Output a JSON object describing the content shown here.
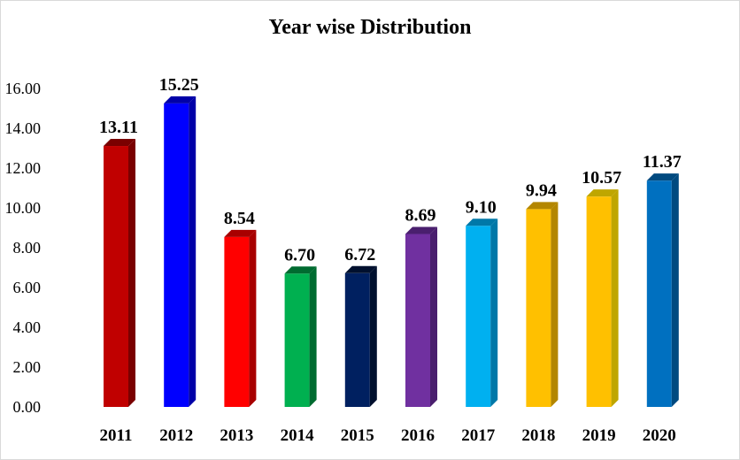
{
  "chart_data": {
    "type": "bar",
    "title": "Year wise Distribution",
    "xlabel": "",
    "ylabel": "",
    "ylim": [
      0,
      16
    ],
    "yticks": [
      "0.00",
      "2.00",
      "4.00",
      "6.00",
      "8.00",
      "10.00",
      "12.00",
      "14.00",
      "16.00"
    ],
    "categories": [
      "2011",
      "2012",
      "2013",
      "2014",
      "2015",
      "2016",
      "2017",
      "2018",
      "2019",
      "2020"
    ],
    "values": [
      13.11,
      15.25,
      8.54,
      6.7,
      6.72,
      8.69,
      9.1,
      9.94,
      10.57,
      11.37
    ],
    "value_labels": [
      "13.11",
      "15.25",
      "8.54",
      "6.70",
      "6.72",
      "8.69",
      "9.10",
      "9.94",
      "10.57",
      "11.37"
    ],
    "colors": [
      "#c00000",
      "#0000ff",
      "#ff0000",
      "#00b050",
      "#002060",
      "#7030a0",
      "#00b0f0",
      "#ffc000",
      "#ffc000",
      "#0070c0"
    ],
    "side_colors": [
      "#7a0000",
      "#0000a8",
      "#a80000",
      "#006b30",
      "#00102e",
      "#4a1f6e",
      "#0078a8",
      "#b38600",
      "#bfa600",
      "#004a80"
    ],
    "legend": "none"
  }
}
